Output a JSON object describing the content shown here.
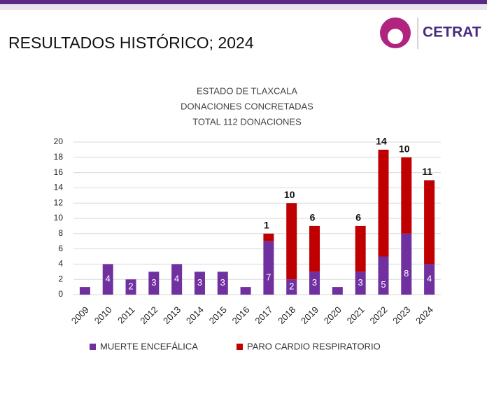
{
  "header": {
    "title": "RESULTADOS HISTÓRICO; 2024",
    "logo": "CETRAT"
  },
  "chart_data": {
    "type": "stacked-bar",
    "title_lines": [
      "ESTADO DE TLAXCALA",
      "DONACIONES CONCRETADAS",
      "TOTAL 112 DONACIONES"
    ],
    "categories": [
      "2009",
      "2010",
      "2011",
      "2012",
      "2013",
      "2014",
      "2015",
      "2016",
      "2017",
      "2018",
      "2019",
      "2020",
      "2021",
      "2022",
      "2023",
      "2024"
    ],
    "series": [
      {
        "name": "MUERTE ENCEFÁLICA",
        "color": "#7030a0",
        "values": [
          1,
          4,
          2,
          3,
          4,
          3,
          3,
          1,
          7,
          2,
          3,
          1,
          3,
          5,
          8,
          4
        ]
      },
      {
        "name": "PARO CARDIO RESPIRATORIO",
        "color": "#c00000",
        "values": [
          0,
          0,
          0,
          0,
          0,
          0,
          0,
          0,
          1,
          10,
          6,
          0,
          6,
          14,
          10,
          11
        ]
      }
    ],
    "ylim": [
      0,
      20
    ],
    "yticks": [
      0,
      2,
      4,
      6,
      8,
      10,
      12,
      14,
      16,
      18,
      20
    ],
    "grid": true,
    "legend": "bottom"
  }
}
